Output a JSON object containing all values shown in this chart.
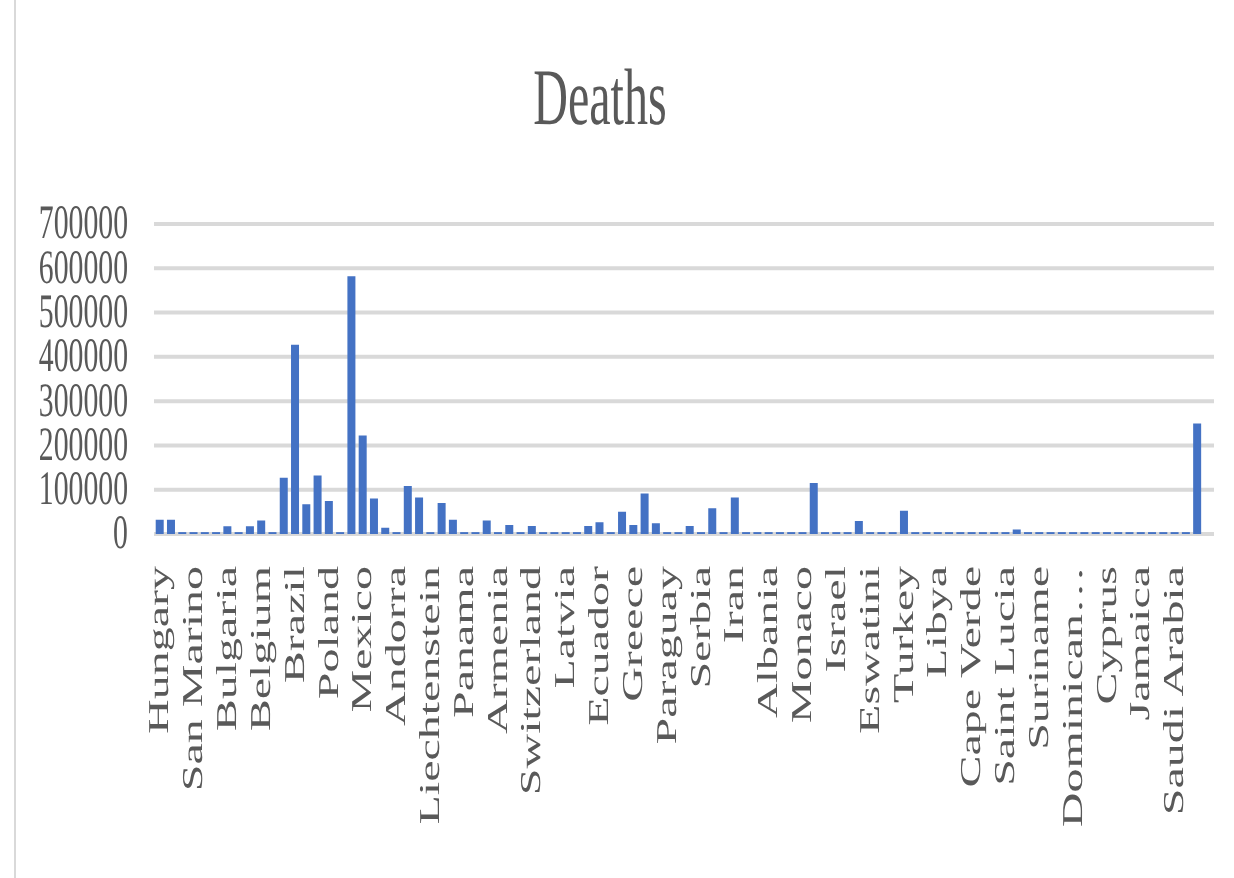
{
  "chart_data": {
    "type": "bar",
    "title": "Deaths",
    "categories": [
      "Hungary",
      null,
      null,
      "San Marino",
      null,
      null,
      "Bulgaria",
      null,
      null,
      "Belgium",
      null,
      null,
      "Brazil",
      null,
      null,
      "Poland",
      null,
      null,
      "Mexico",
      null,
      null,
      "Andorra",
      null,
      null,
      "Liechtenstein",
      null,
      null,
      "Panama",
      null,
      null,
      "Armenia",
      null,
      null,
      "Switzerland",
      null,
      null,
      "Latvia",
      null,
      null,
      "Ecuador",
      null,
      null,
      "Greece",
      null,
      null,
      "Paraguay",
      null,
      null,
      "Serbia",
      null,
      null,
      "Iran",
      null,
      null,
      "Albania",
      null,
      null,
      "Monaco",
      null,
      null,
      "Israel",
      null,
      null,
      "Eswatini",
      null,
      null,
      "Turkey",
      null,
      null,
      "Libya",
      null,
      null,
      "Cape Verde",
      null,
      null,
      "Saint Lucia",
      null,
      null,
      "Suriname",
      null,
      null,
      "Dominican…",
      null,
      null,
      "Cyprus",
      null,
      null,
      "Jamaica",
      null,
      null,
      "Saudi Arabia",
      null,
      null,
      null
    ],
    "values": [
      30000,
      30000,
      2000,
      2000,
      2000,
      2000,
      15000,
      2000,
      15000,
      28000,
      2000,
      125000,
      425000,
      65000,
      130000,
      72000,
      2000,
      580000,
      220000,
      78000,
      12000,
      2000,
      106000,
      80000,
      2000,
      68000,
      30000,
      2000,
      2000,
      28000,
      2000,
      18000,
      2000,
      16000,
      2000,
      2000,
      2000,
      2000,
      16000,
      24000,
      2000,
      48000,
      18000,
      89000,
      22000,
      2000,
      2000,
      16000,
      2000,
      56000,
      2000,
      80000,
      2000,
      2000,
      2000,
      2000,
      2000,
      2000,
      113000,
      2000,
      2000,
      2000,
      27000,
      2000,
      2000,
      2000,
      50000,
      2000,
      2000,
      2000,
      2000,
      2000,
      2000,
      2000,
      2000,
      2000,
      8000,
      2000,
      2000,
      2000,
      2000,
      2000,
      2000,
      2000,
      2000,
      2000,
      2000,
      2000,
      2000,
      2000,
      2000,
      2000,
      247000,
      null
    ],
    "color": "#4472c4",
    "ylim": [
      0,
      700000
    ],
    "yticks": [
      0,
      100000,
      200000,
      300000,
      400000,
      500000,
      600000,
      700000
    ],
    "grid": "y"
  }
}
